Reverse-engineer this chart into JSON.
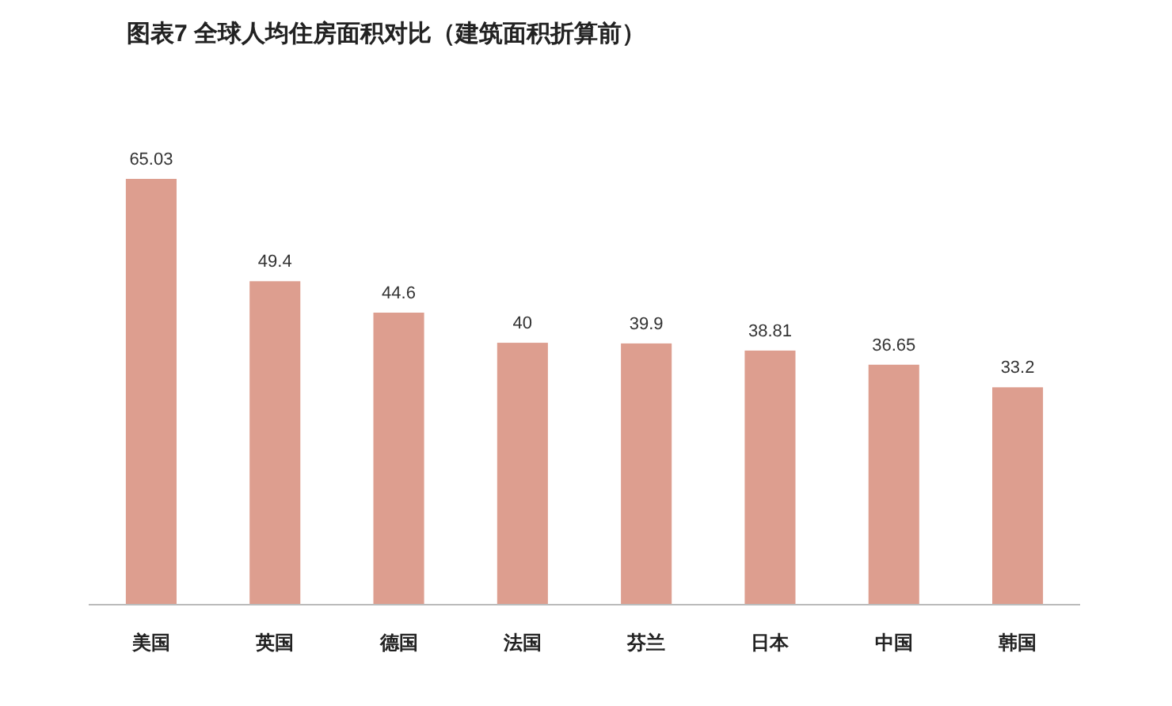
{
  "chart_data": {
    "type": "bar",
    "title": "图表7 全球人均住房面积对比（建筑面积折算前）",
    "categories": [
      "美国",
      "英国",
      "德国",
      "法国",
      "芬兰",
      "日本",
      "中国",
      "韩国"
    ],
    "values": [
      65.03,
      49.4,
      44.6,
      40,
      39.9,
      38.81,
      36.65,
      33.2
    ],
    "color": "#dd9e8f",
    "data_labels": true
  }
}
